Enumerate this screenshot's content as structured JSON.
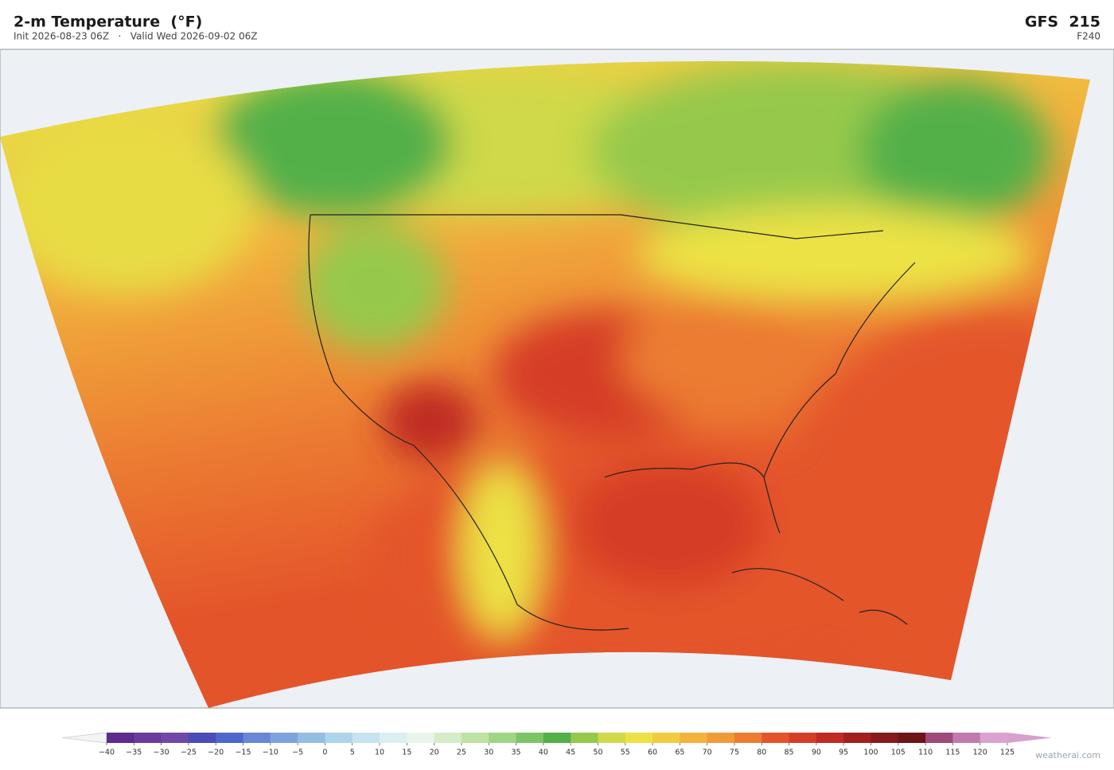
{
  "header": {
    "title": "2-m Temperature  (°F)",
    "subtitle": "Init 2026-08-23 06Z   ·   Valid Wed 2026-09-02 06Z",
    "model": "GFS  215",
    "forecast_hour": "F240"
  },
  "colorbar": {
    "lim": [
      -40,
      125
    ],
    "ticks": [
      {
        "value": -40,
        "label": "−40"
      },
      {
        "value": -35,
        "label": "−35"
      },
      {
        "value": -30,
        "label": "−30"
      },
      {
        "value": -25,
        "label": "−25"
      },
      {
        "value": -20,
        "label": "−20"
      },
      {
        "value": -15,
        "label": "−15"
      },
      {
        "value": -10,
        "label": "−10"
      },
      {
        "value": -5,
        "label": "−5"
      },
      0,
      5,
      10,
      15,
      20,
      25,
      30,
      35,
      40,
      45,
      50,
      55,
      60,
      65,
      70,
      75,
      80,
      85,
      90,
      95,
      100,
      105,
      110,
      115,
      120,
      125
    ],
    "colors": [
      "#5e2b91",
      "#6b3a9e",
      "#7048a8",
      "#4a4cb8",
      "#4f66cc",
      "#6a86d4",
      "#7fa3dc",
      "#93bde3",
      "#aed4ea",
      "#c6e4ef",
      "#dbeff3",
      "#e8f5ec",
      "#d4edc8",
      "#bde3a3",
      "#9fd585",
      "#7cc566",
      "#52b04a",
      "#96c94b",
      "#cfd94a",
      "#ece245",
      "#f2cb42",
      "#f4b23f",
      "#f09a3a",
      "#ec7c32",
      "#e4542a",
      "#d63d26",
      "#bf2a22",
      "#a21f1f",
      "#851a1c",
      "#6c1418",
      "#9d4a7a",
      "#c27aae",
      "#dba2cf"
    ],
    "extend_colors": [
      "#f4f4f4",
      "#d7a0d0"
    ]
  },
  "footer": {
    "credit": "weatherai.com"
  }
}
